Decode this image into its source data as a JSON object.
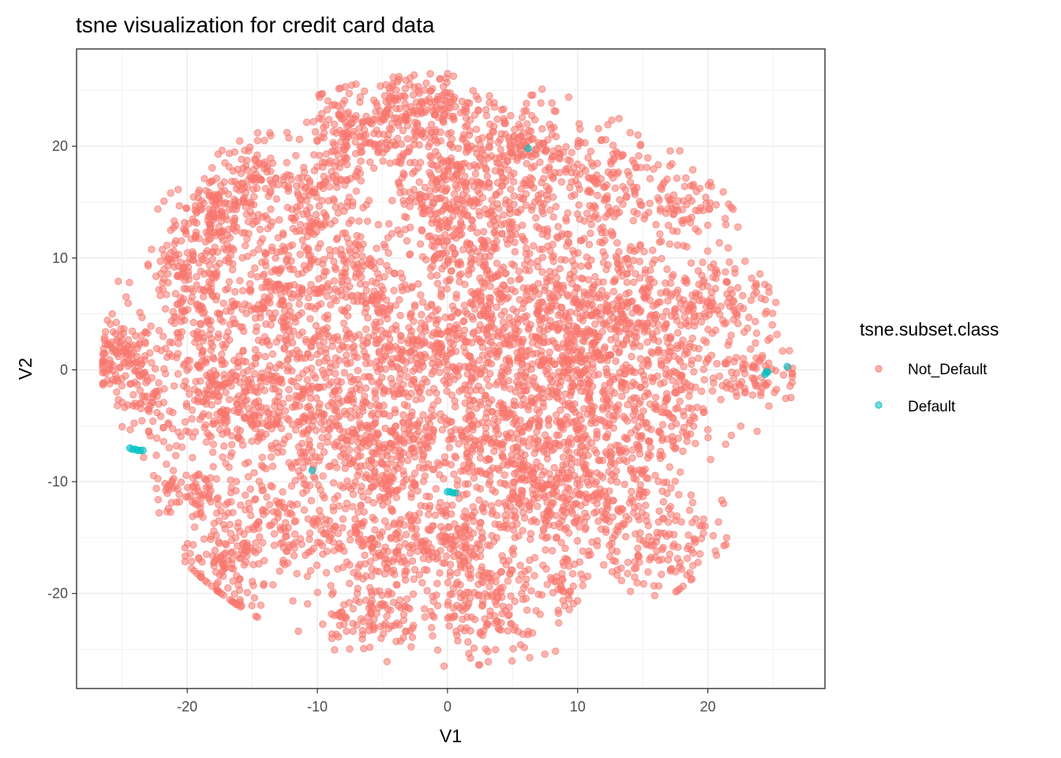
{
  "chart_data": {
    "type": "scatter",
    "title": "tsne visualization for credit card data",
    "xlabel": "V1",
    "ylabel": "V2",
    "xlim": [
      -28.5,
      29
    ],
    "ylim": [
      -28.5,
      28.7
    ],
    "xticks": [
      -20,
      -10,
      0,
      10,
      20
    ],
    "yticks": [
      -20,
      -10,
      0,
      10,
      20
    ],
    "grid": true,
    "legend": {
      "title": "tsne.subset.class",
      "position": "right",
      "entries": [
        "Not_Default",
        "Default"
      ]
    },
    "colors": {
      "Not_Default": "#F8766D",
      "Default": "#00BFC4"
    },
    "series": [
      {
        "name": "Not_Default",
        "color": "#F8766D",
        "clusters": [
          {
            "center": [
              -25,
              1
            ],
            "spread": [
              1.2,
              1.6
            ],
            "n": 120
          },
          {
            "center": [
              -18,
              14
            ],
            "spread": [
              1.5,
              1.8
            ],
            "n": 140
          },
          {
            "center": [
              -15,
              17
            ],
            "spread": [
              1.5,
              1.8
            ],
            "n": 100
          },
          {
            "center": [
              -20,
              9
            ],
            "spread": [
              2,
              1.2
            ],
            "n": 90
          },
          {
            "center": [
              -19,
              5
            ],
            "spread": [
              2,
              1.5
            ],
            "n": 110
          },
          {
            "center": [
              -18,
              -2
            ],
            "spread": [
              2,
              3
            ],
            "n": 170
          },
          {
            "center": [
              -14,
              -4
            ],
            "spread": [
              2.5,
              3
            ],
            "n": 200
          },
          {
            "center": [
              -13,
              6
            ],
            "spread": [
              2,
              3
            ],
            "n": 210
          },
          {
            "center": [
              -10,
              14
            ],
            "spread": [
              2,
              3
            ],
            "n": 170
          },
          {
            "center": [
              -8,
              21
            ],
            "spread": [
              1.5,
              2
            ],
            "n": 100
          },
          {
            "center": [
              -4,
              22
            ],
            "spread": [
              2,
              2.3
            ],
            "n": 160
          },
          {
            "center": [
              -2,
              24
            ],
            "spread": [
              2.5,
              1.2
            ],
            "n": 70
          },
          {
            "center": [
              -7,
              8
            ],
            "spread": [
              2,
              2.5
            ],
            "n": 140
          },
          {
            "center": [
              -4,
              2
            ],
            "spread": [
              2.5,
              2.5
            ],
            "n": 170
          },
          {
            "center": [
              -9,
              -2
            ],
            "spread": [
              2,
              3
            ],
            "n": 170
          },
          {
            "center": [
              -6,
              -8
            ],
            "spread": [
              2.5,
              2.5
            ],
            "n": 200
          },
          {
            "center": [
              -5,
              -15
            ],
            "spread": [
              2.5,
              2.5
            ],
            "n": 180
          },
          {
            "center": [
              -6,
              -22
            ],
            "spread": [
              2,
              1.5
            ],
            "n": 110
          },
          {
            "center": [
              -13,
              -14
            ],
            "spread": [
              2.5,
              3
            ],
            "n": 170
          },
          {
            "center": [
              -17,
              -18
            ],
            "spread": [
              1.8,
              2.5
            ],
            "n": 120
          },
          {
            "center": [
              -20,
              -11
            ],
            "spread": [
              1.5,
              1.2
            ],
            "n": 70
          },
          {
            "center": [
              -2,
              -5
            ],
            "spread": [
              2,
              3
            ],
            "n": 120
          },
          {
            "center": [
              2,
              3
            ],
            "spread": [
              3,
              5
            ],
            "n": 350
          },
          {
            "center": [
              3,
              12
            ],
            "spread": [
              3,
              4
            ],
            "n": 260
          },
          {
            "center": [
              2,
              19
            ],
            "spread": [
              2.5,
              3
            ],
            "n": 180
          },
          {
            "center": [
              6,
              20
            ],
            "spread": [
              1.5,
              2
            ],
            "n": 90
          },
          {
            "center": [
              11,
              16
            ],
            "spread": [
              3,
              3
            ],
            "n": 220
          },
          {
            "center": [
              9,
              3
            ],
            "spread": [
              3,
              4
            ],
            "n": 330
          },
          {
            "center": [
              13,
              5
            ],
            "spread": [
              2.5,
              3.5
            ],
            "n": 220
          },
          {
            "center": [
              4,
              -7
            ],
            "spread": [
              2.5,
              3
            ],
            "n": 220
          },
          {
            "center": [
              11,
              -5
            ],
            "spread": [
              3,
              3.5
            ],
            "n": 280
          },
          {
            "center": [
              17,
              -2
            ],
            "spread": [
              2.5,
              3
            ],
            "n": 180
          },
          {
            "center": [
              17,
              5
            ],
            "spread": [
              2,
              2
            ],
            "n": 90
          },
          {
            "center": [
              8,
              -12
            ],
            "spread": [
              2,
              2
            ],
            "n": 120
          },
          {
            "center": [
              1,
              -15
            ],
            "spread": [
              2.5,
              2.5
            ],
            "n": 180
          },
          {
            "center": [
              3,
              -21
            ],
            "spread": [
              2.5,
              2.5
            ],
            "n": 170
          },
          {
            "center": [
              13,
              -13
            ],
            "spread": [
              3,
              3
            ],
            "n": 180
          },
          {
            "center": [
              17,
              -16
            ],
            "spread": [
              2,
              2
            ],
            "n": 80
          },
          {
            "center": [
              19,
              15
            ],
            "spread": [
              1.5,
              1.5
            ],
            "n": 60
          },
          {
            "center": [
              20,
              8
            ],
            "spread": [
              1.2,
              2
            ],
            "n": 50
          },
          {
            "center": [
              23,
              6
            ],
            "spread": [
              1.2,
              1.5
            ],
            "n": 40
          },
          {
            "center": [
              24,
              0
            ],
            "spread": [
              1.6,
              1.5
            ],
            "n": 80
          },
          {
            "center": [
              9,
              -19
            ],
            "spread": [
              1,
              1.5
            ],
            "n": 40
          },
          {
            "center": [
              -23,
              -3
            ],
            "spread": [
              1.2,
              2
            ],
            "n": 60
          },
          {
            "center": [
              -1,
              14
            ],
            "spread": [
              1.5,
              2
            ],
            "n": 80
          }
        ]
      },
      {
        "name": "Default",
        "color": "#00BFC4",
        "points": [
          [
            -24.2,
            -7.1
          ],
          [
            -24,
            -7.1
          ],
          [
            -23.8,
            -7.2
          ],
          [
            -23.6,
            -7.2
          ],
          [
            -23.4,
            -7.2
          ],
          [
            -24.4,
            -7.0
          ],
          [
            0,
            -10.9
          ],
          [
            0.2,
            -10.9
          ],
          [
            0.4,
            -11.0
          ],
          [
            0.6,
            -11.0
          ],
          [
            24.5,
            -0.2
          ],
          [
            24.4,
            -0.4
          ],
          [
            24.6,
            -0.2
          ],
          [
            26.1,
            0.3
          ],
          [
            6.2,
            19.8
          ],
          [
            -10.4,
            -9.0
          ]
        ]
      }
    ]
  }
}
